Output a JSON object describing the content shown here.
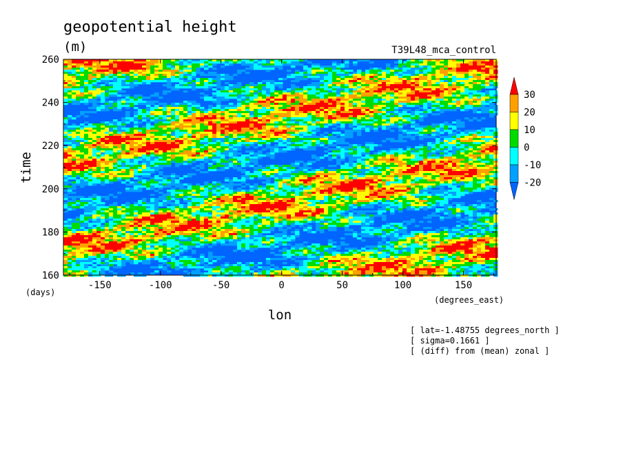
{
  "chart_data": {
    "type": "heatmap",
    "title": "geopotential height",
    "units": "(m)",
    "experiment": "T39L48_mca_control",
    "xlabel": "lon",
    "ylabel": "time",
    "x_unit_label": "(degrees_east)",
    "y_unit_label": "(days)",
    "xlim": [
      -180,
      177
    ],
    "ylim": [
      160,
      260
    ],
    "x_ticks": [
      "-150",
      "-100",
      "-50",
      "0",
      "50",
      "100",
      "150"
    ],
    "y_ticks": [
      "160",
      "180",
      "200",
      "220",
      "240",
      "260"
    ],
    "colorbar": {
      "levels": [
        "30",
        "20",
        "10",
        "0",
        "-10",
        "-20"
      ],
      "colors": [
        "#ff0000",
        "#ffa000",
        "#ffff00",
        "#00dc00",
        "#00ffff",
        "#00a0ff",
        "#0064ff"
      ],
      "extend": "both"
    },
    "annotations": [
      "[ lat=-1.48755 degrees_north ]",
      "[ sigma=0.1661 ]",
      "[ (diff) from (mean) zonal ]"
    ]
  }
}
